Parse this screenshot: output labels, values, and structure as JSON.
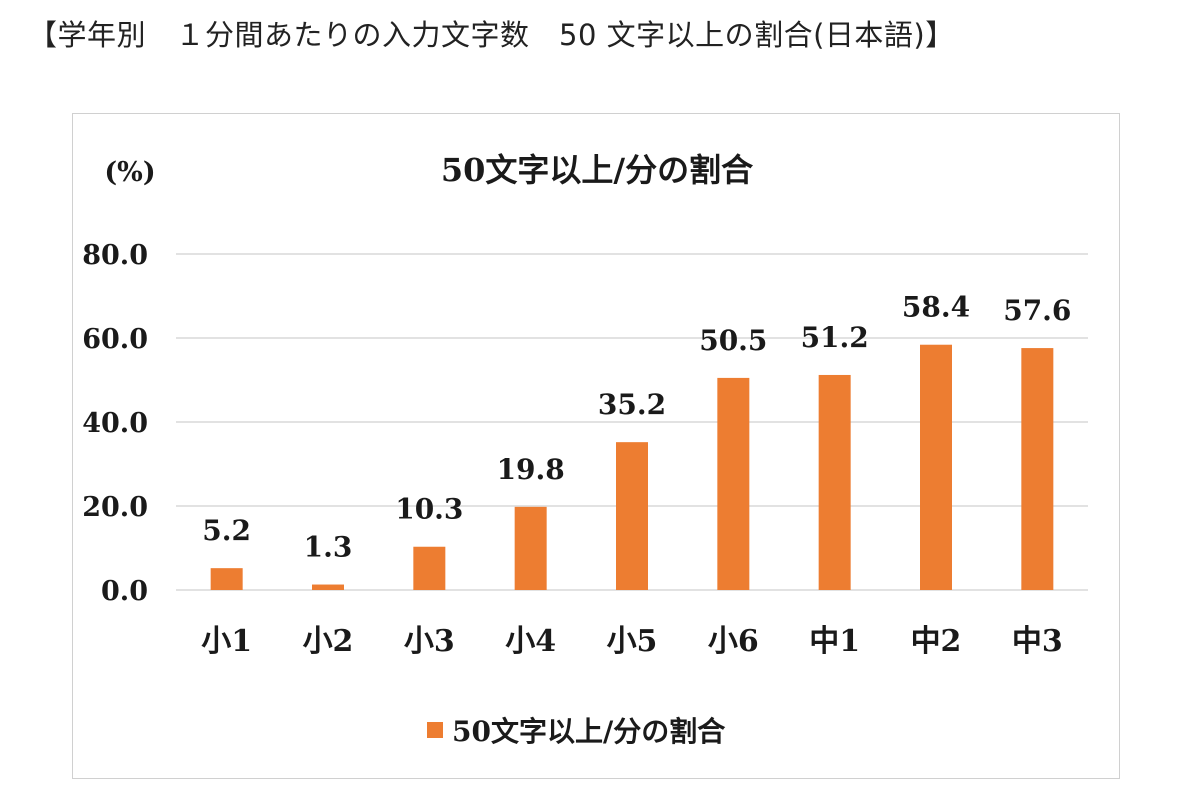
{
  "page": {
    "heading": "【学年別　１分間あたりの入力文字数　50 文字以上の割合(日本語)】"
  },
  "chart_data": {
    "type": "bar",
    "title": "50文字以上/分の割合",
    "ylabel": "(%)",
    "xlabel": "",
    "categories": [
      "小1",
      "小2",
      "小3",
      "小4",
      "小5",
      "小6",
      "中1",
      "中2",
      "中3"
    ],
    "series": [
      {
        "name": "50文字以上/分の割合",
        "values": [
          5.2,
          1.3,
          10.3,
          19.8,
          35.2,
          50.5,
          51.2,
          58.4,
          57.6
        ],
        "color": "#ED7D31"
      }
    ],
    "data_labels": [
      "5.2",
      "1.3",
      "10.3",
      "19.8",
      "35.2",
      "50.5",
      "51.2",
      "58.4",
      "57.6"
    ],
    "ylim": [
      0,
      80
    ],
    "yticks": [
      "0.0",
      "20.0",
      "40.0",
      "60.0",
      "80.0"
    ],
    "grid": true,
    "gridline_color": "#d9d9d9",
    "legend_position": "bottom"
  }
}
